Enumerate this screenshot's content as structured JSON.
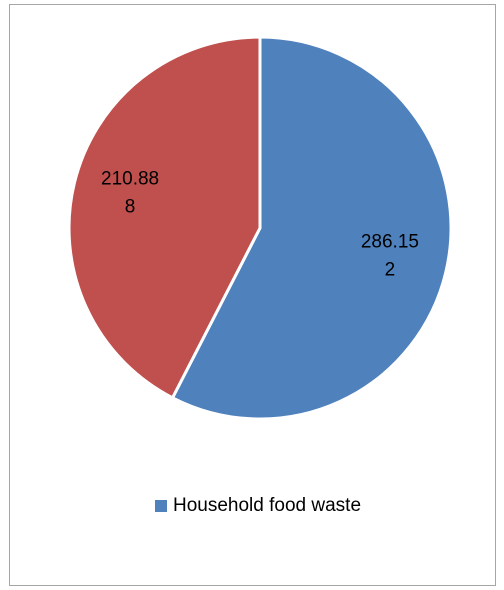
{
  "chart_data": {
    "type": "pie",
    "title": "",
    "slices": [
      {
        "name": "Household food waste",
        "value": 286.152,
        "label_lines": [
          "286.15",
          "2"
        ],
        "color": "#4f81bd"
      },
      {
        "name": "",
        "value": 210.888,
        "label_lines": [
          "210.88",
          "8"
        ],
        "color": "#c0504d"
      }
    ],
    "start_angle_deg": 0,
    "legend": {
      "position": "bottom",
      "entries": [
        "Household food waste"
      ]
    },
    "border_color": "#a6a6a6"
  }
}
